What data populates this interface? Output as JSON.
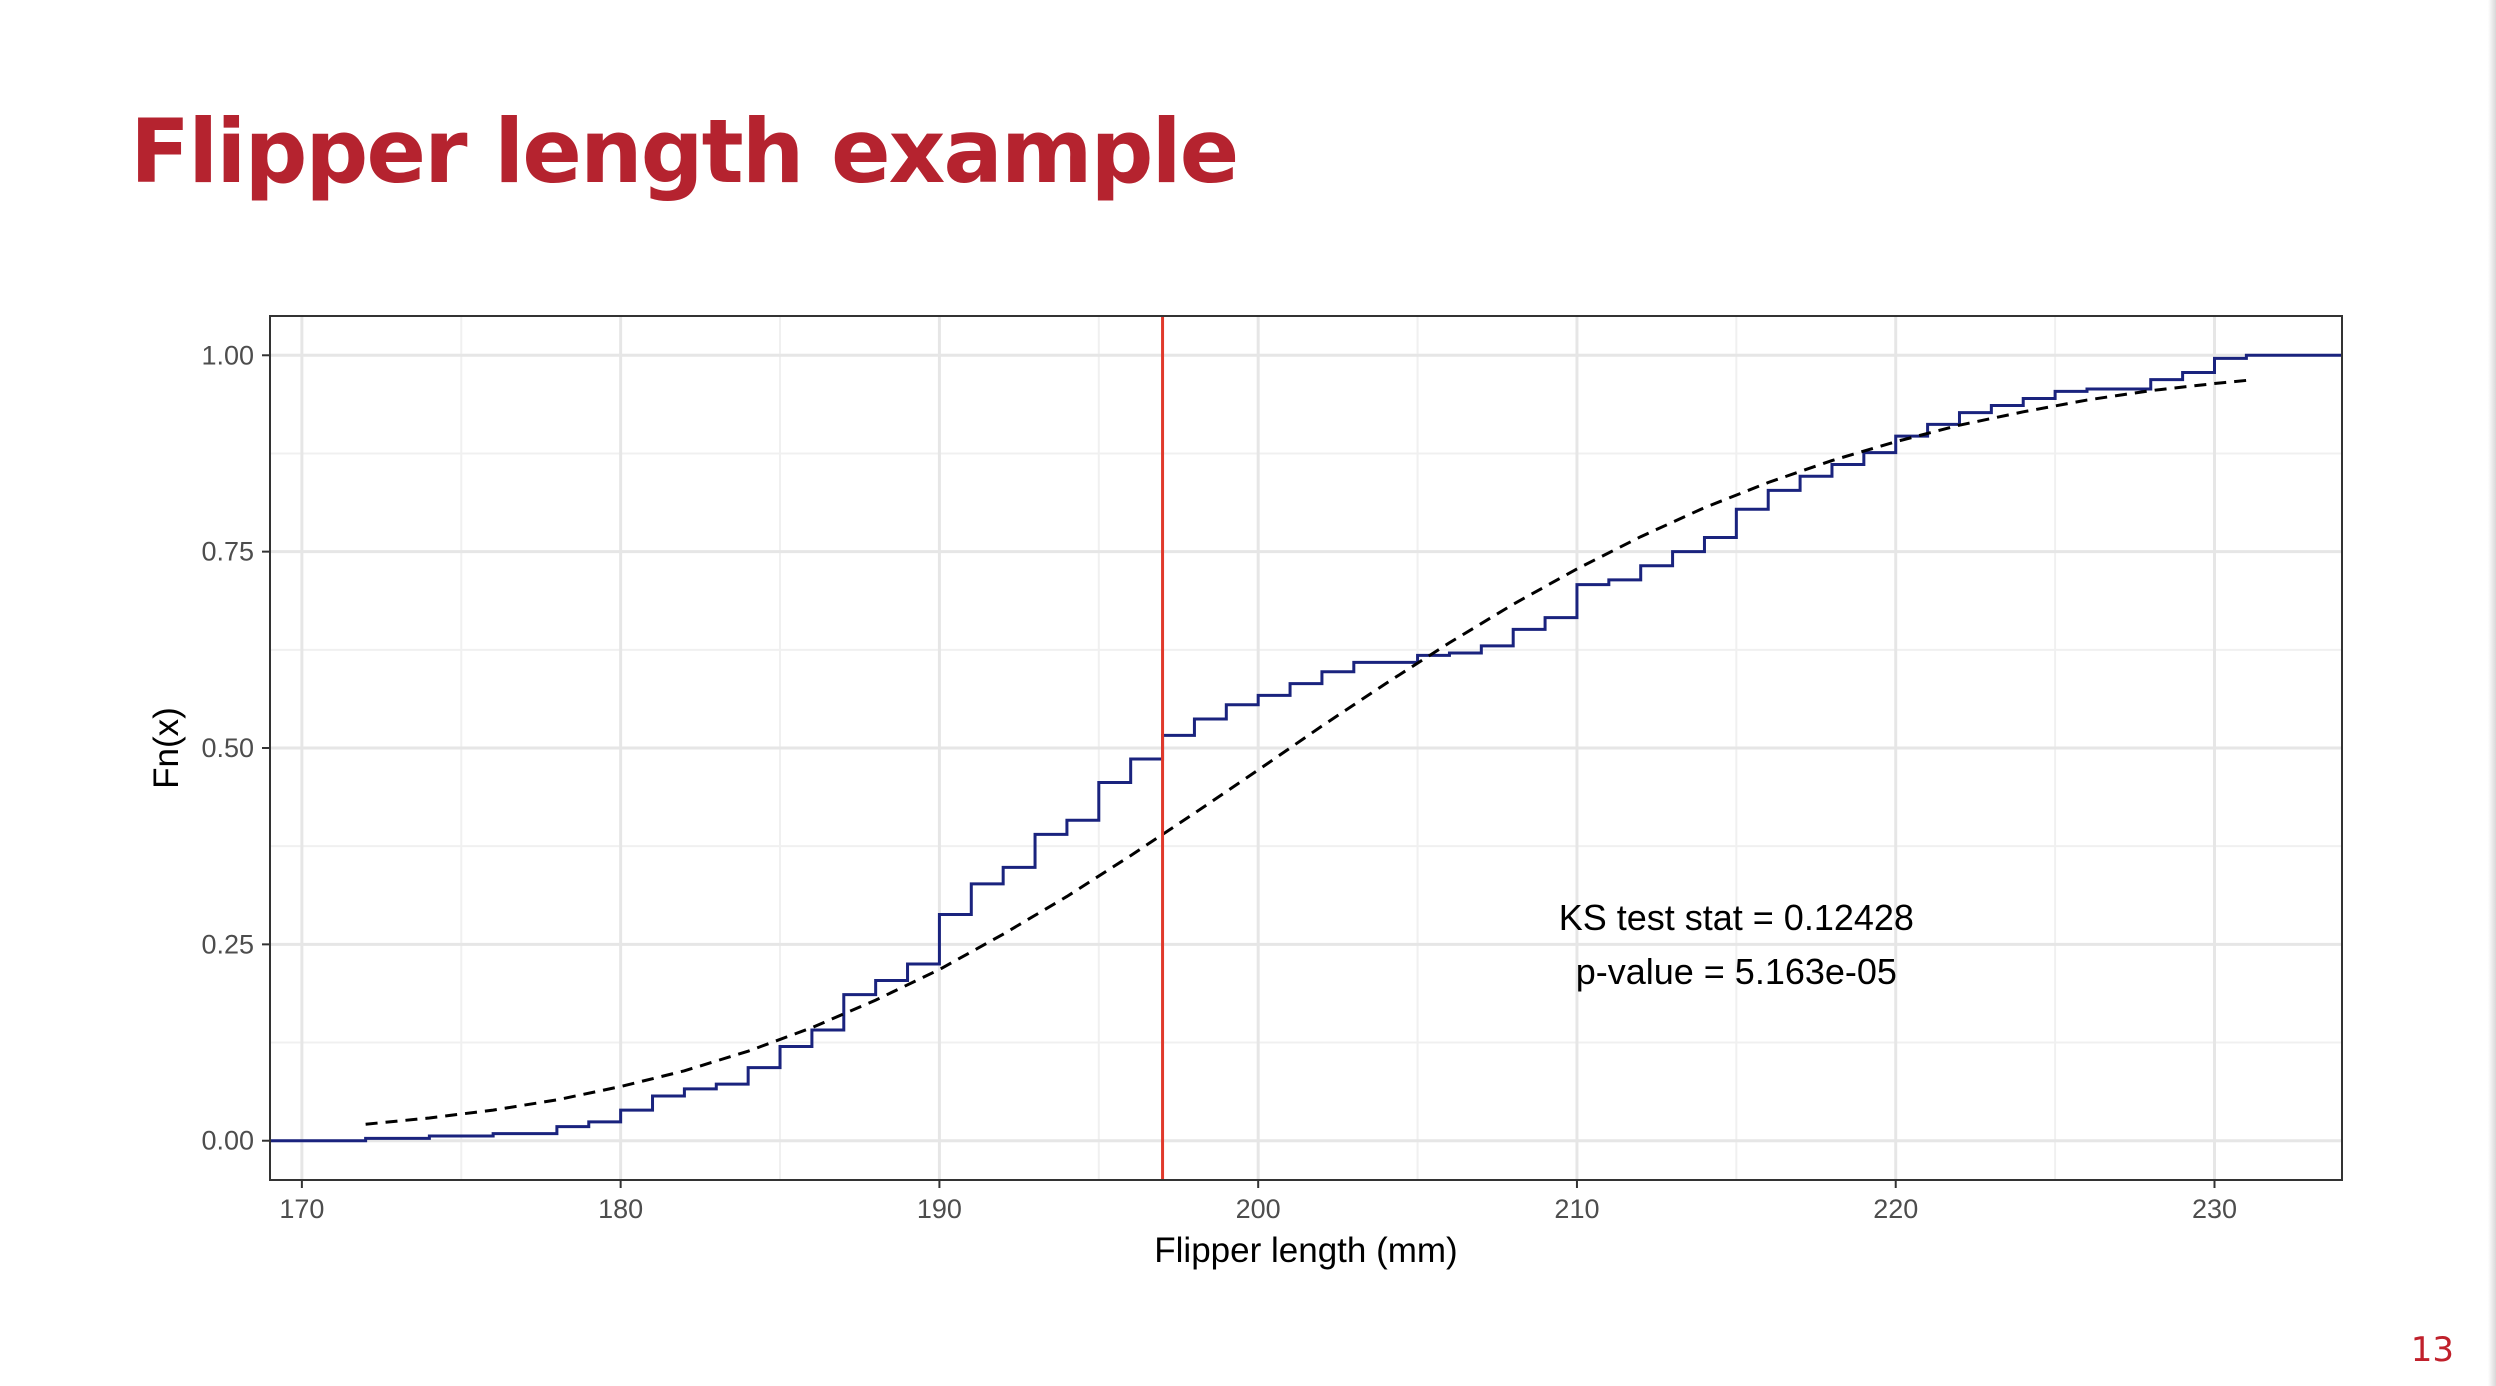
{
  "slide": {
    "title": "Flipper length example",
    "page_number": "13"
  },
  "chart_data": {
    "type": "line",
    "title": "",
    "xlabel": "Flipper length (mm)",
    "ylabel": "Fn(x)",
    "xlim": [
      169,
      234
    ],
    "ylim": [
      -0.05,
      1.05
    ],
    "x_ticks": [
      170,
      180,
      190,
      200,
      210,
      220,
      230
    ],
    "x_tick_labels": [
      "170",
      "180",
      "190",
      "200",
      "210",
      "220",
      "230"
    ],
    "y_ticks": [
      0,
      0.25,
      0.5,
      0.75,
      1
    ],
    "y_tick_labels": [
      "0.00",
      "0.25",
      "0.50",
      "0.75",
      "1.00"
    ],
    "grid": true,
    "series": [
      {
        "style": "step",
        "color": "#1a237e",
        "x": [
          172,
          174,
          176,
          178,
          179,
          180,
          181,
          182,
          183,
          184,
          185,
          186,
          187,
          188,
          189,
          190,
          191,
          192,
          193,
          194,
          195,
          196,
          197,
          198,
          199,
          200,
          201,
          202,
          203,
          205,
          206,
          207,
          208,
          209,
          210,
          211,
          212,
          213,
          214,
          215,
          216,
          217,
          218,
          219,
          220,
          221,
          222,
          223,
          224,
          225,
          226,
          228,
          229,
          230,
          231
        ],
        "y": [
          0.003,
          0.006,
          0.009,
          0.018,
          0.024,
          0.039,
          0.057,
          0.066,
          0.072,
          0.093,
          0.12,
          0.141,
          0.186,
          0.204,
          0.225,
          0.288,
          0.327,
          0.348,
          0.39,
          0.408,
          0.456,
          0.486,
          0.516,
          0.537,
          0.555,
          0.567,
          0.582,
          0.597,
          0.609,
          0.618,
          0.621,
          0.63,
          0.651,
          0.666,
          0.708,
          0.714,
          0.732,
          0.75,
          0.768,
          0.804,
          0.828,
          0.846,
          0.861,
          0.876,
          0.897,
          0.912,
          0.927,
          0.936,
          0.945,
          0.954,
          0.957,
          0.969,
          0.978,
          0.996,
          1.0
        ]
      },
      {
        "style": "dashed",
        "color": "#000000",
        "x": [
          172,
          174,
          176,
          178,
          180,
          182,
          184,
          186,
          188,
          190,
          192,
          194,
          196,
          198,
          200,
          202,
          204,
          206,
          208,
          210,
          212,
          214,
          216,
          218,
          220,
          222,
          224,
          226,
          228,
          230,
          231
        ],
        "y": [
          0.021,
          0.029,
          0.039,
          0.052,
          0.069,
          0.089,
          0.114,
          0.144,
          0.179,
          0.218,
          0.263,
          0.311,
          0.363,
          0.417,
          0.472,
          0.528,
          0.582,
          0.634,
          0.683,
          0.728,
          0.769,
          0.806,
          0.838,
          0.866,
          0.89,
          0.911,
          0.928,
          0.943,
          0.955,
          0.964,
          0.968
        ]
      }
    ],
    "vline": {
      "x": 197,
      "color": "#e0392b"
    },
    "annotation": {
      "line1": "KS test stat = 0.12428",
      "line2": "p-value = 5.163e-05"
    }
  }
}
